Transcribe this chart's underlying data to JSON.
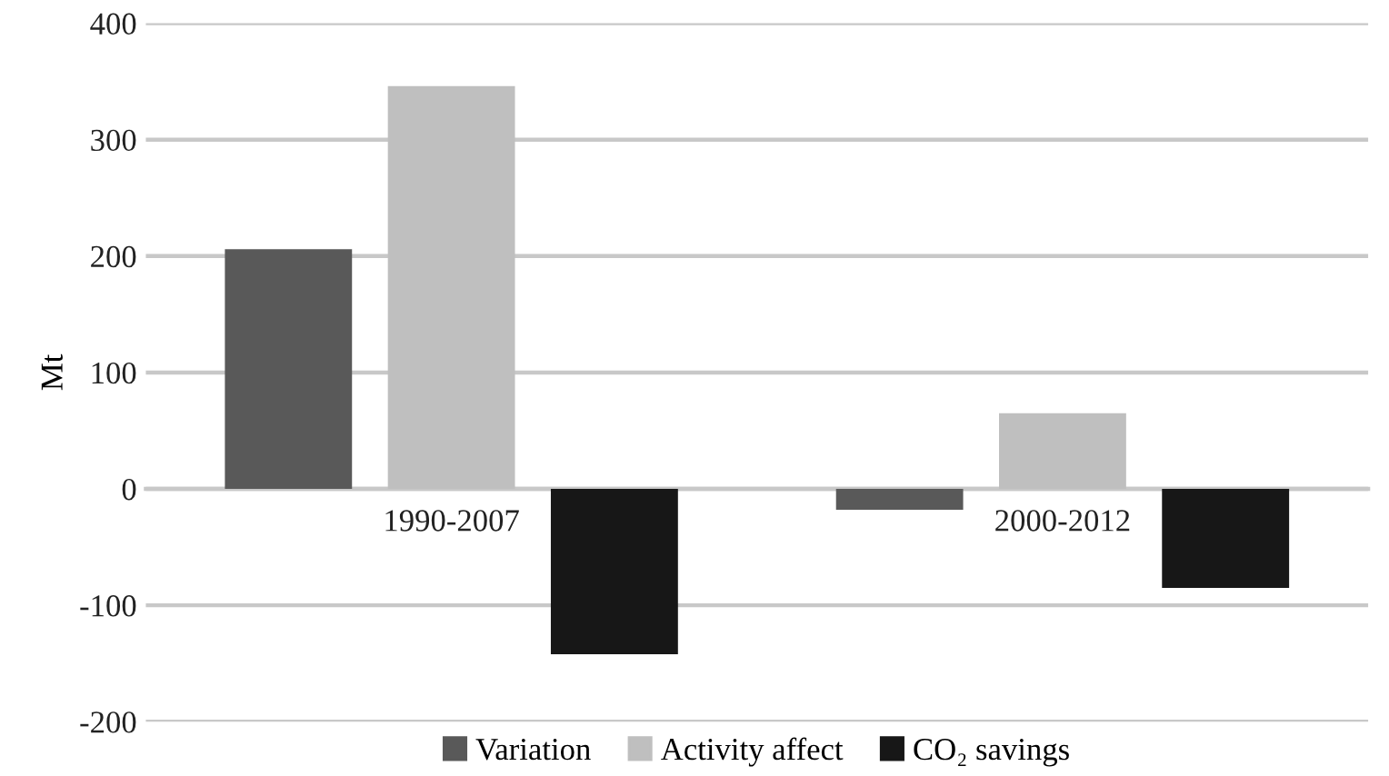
{
  "chart_data": {
    "type": "bar",
    "ylabel": "Mt",
    "categories": [
      "1990-2007",
      "2000-2012"
    ],
    "series": [
      {
        "name": "Variation",
        "color": "#595959",
        "values": [
          206,
          -18
        ]
      },
      {
        "name": "Activity affect",
        "color": "#bfbfbf",
        "values": [
          346,
          65
        ]
      },
      {
        "name": "CO₂ savings",
        "color": "#171717",
        "values": [
          -142,
          -85
        ]
      }
    ],
    "ylim": [
      -200,
      400
    ],
    "yticks": [
      -200,
      -100,
      0,
      100,
      200,
      300,
      400
    ],
    "grid": "y",
    "legend": "bottom"
  }
}
